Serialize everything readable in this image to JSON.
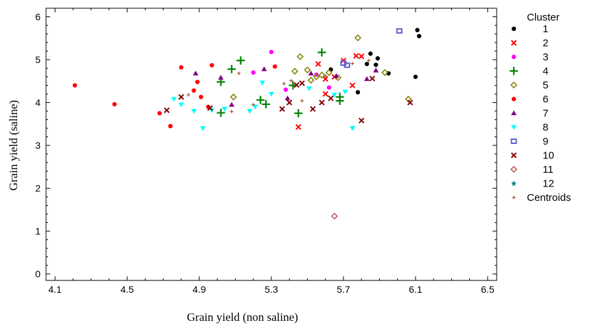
{
  "chart_data": {
    "type": "scatter",
    "title": "",
    "xlabel": "Grain yield (non saline)",
    "ylabel": "Grain yield (saline)",
    "xlim": [
      4.05,
      6.55
    ],
    "ylim": [
      -0.15,
      6.2
    ],
    "x_ticks": [
      "4.1",
      "4.5",
      "4.9",
      "5.3",
      "5.7",
      "6.1",
      "6.5"
    ],
    "y_ticks": [
      "0",
      "1",
      "2",
      "3",
      "4",
      "5",
      "6"
    ],
    "grid": false,
    "legend": {
      "title": "Cluster",
      "position": "right"
    },
    "series": [
      {
        "name": "1",
        "color": "#000000",
        "marker": "circle",
        "points": [
          [
            5.63,
            4.77
          ],
          [
            5.83,
            4.9
          ],
          [
            5.85,
            5.14
          ],
          [
            5.89,
            5.03
          ],
          [
            5.95,
            4.68
          ],
          [
            6.11,
            5.69
          ],
          [
            6.12,
            5.55
          ],
          [
            6.1,
            4.6
          ],
          [
            5.78,
            4.24
          ],
          [
            5.88,
            4.88
          ]
        ]
      },
      {
        "name": "2",
        "color": "#ff0000",
        "marker": "x",
        "points": [
          [
            5.45,
            3.43
          ],
          [
            5.56,
            4.9
          ],
          [
            5.6,
            4.55
          ],
          [
            5.65,
            4.6
          ],
          [
            5.7,
            4.98
          ],
          [
            5.77,
            5.09
          ],
          [
            5.8,
            5.08
          ],
          [
            5.75,
            4.4
          ],
          [
            5.6,
            4.2
          ]
        ]
      },
      {
        "name": "3",
        "color": "#ff00ff",
        "marker": "circle",
        "points": [
          [
            5.3,
            5.18
          ],
          [
            5.2,
            4.7
          ],
          [
            5.55,
            4.65
          ],
          [
            5.62,
            4.35
          ],
          [
            5.38,
            4.3
          ]
        ]
      },
      {
        "name": "4",
        "color": "#008000",
        "marker": "plus",
        "points": [
          [
            5.02,
            4.48
          ],
          [
            5.08,
            4.78
          ],
          [
            5.13,
            4.98
          ],
          [
            5.02,
            3.76
          ],
          [
            5.24,
            4.06
          ],
          [
            5.27,
            3.96
          ],
          [
            5.45,
            3.75
          ],
          [
            5.58,
            5.17
          ],
          [
            5.68,
            4.13
          ],
          [
            5.68,
            4.04
          ],
          [
            5.42,
            4.4
          ]
        ]
      },
      {
        "name": "5",
        "color": "#808000",
        "marker": "diamond",
        "points": [
          [
            5.09,
            4.13
          ],
          [
            5.43,
            4.73
          ],
          [
            5.46,
            5.07
          ],
          [
            5.52,
            4.52
          ],
          [
            5.55,
            4.6
          ],
          [
            5.58,
            4.64
          ],
          [
            5.62,
            4.7
          ],
          [
            5.67,
            4.58
          ],
          [
            5.78,
            5.51
          ],
          [
            5.93,
            4.7
          ],
          [
            6.06,
            4.08
          ],
          [
            5.5,
            4.76
          ]
        ]
      },
      {
        "name": "6",
        "color": "#ff0000",
        "marker": "circle",
        "points": [
          [
            4.21,
            4.4
          ],
          [
            4.43,
            3.96
          ],
          [
            4.74,
            3.45
          ],
          [
            4.8,
            4.82
          ],
          [
            4.89,
            4.48
          ],
          [
            4.91,
            4.13
          ],
          [
            4.95,
            3.9
          ],
          [
            4.97,
            4.87
          ],
          [
            4.87,
            4.28
          ],
          [
            4.68,
            3.75
          ],
          [
            5.32,
            4.84
          ]
        ]
      },
      {
        "name": "7",
        "color": "#800080",
        "marker": "triangle",
        "points": [
          [
            4.88,
            4.68
          ],
          [
            5.02,
            4.58
          ],
          [
            5.08,
            3.95
          ],
          [
            5.26,
            4.78
          ],
          [
            5.39,
            4.1
          ],
          [
            5.66,
            4.62
          ],
          [
            5.83,
            4.55
          ],
          [
            5.88,
            4.75
          ],
          [
            5.52,
            4.68
          ]
        ]
      },
      {
        "name": "8",
        "color": "#00ffff",
        "marker": "triangle-down",
        "points": [
          [
            4.76,
            4.08
          ],
          [
            4.8,
            3.95
          ],
          [
            4.87,
            3.8
          ],
          [
            4.92,
            3.4
          ],
          [
            4.97,
            3.82
          ],
          [
            5.04,
            3.85
          ],
          [
            5.18,
            3.8
          ],
          [
            5.21,
            3.9
          ],
          [
            5.25,
            4.46
          ],
          [
            5.3,
            4.2
          ],
          [
            5.51,
            4.33
          ],
          [
            5.65,
            4.18
          ],
          [
            5.71,
            4.25
          ],
          [
            5.75,
            3.4
          ]
        ]
      },
      {
        "name": "9",
        "color": "#6060d0",
        "marker": "square",
        "points": [
          [
            6.01,
            5.67
          ],
          [
            5.72,
            4.87
          ],
          [
            5.7,
            4.92
          ]
        ]
      },
      {
        "name": "10",
        "color": "#800000",
        "marker": "x",
        "points": [
          [
            4.72,
            3.82
          ],
          [
            4.8,
            4.13
          ],
          [
            4.96,
            3.87
          ],
          [
            5.36,
            3.85
          ],
          [
            5.4,
            4.0
          ],
          [
            5.44,
            4.41
          ],
          [
            5.53,
            3.85
          ],
          [
            5.58,
            4.0
          ],
          [
            5.8,
            3.58
          ],
          [
            5.86,
            4.56
          ],
          [
            6.07,
            4.0
          ],
          [
            5.47,
            4.45
          ],
          [
            5.63,
            4.1
          ]
        ]
      },
      {
        "name": "11",
        "color": "#c05050",
        "marker": "diamond",
        "points": [
          [
            5.65,
            1.35
          ]
        ]
      },
      {
        "name": "12",
        "color": "#008080",
        "marker": "star",
        "points": []
      },
      {
        "name": "Centroids",
        "color": "#a0522d",
        "marker": "small-plus",
        "points": [
          [
            4.84,
            4.18
          ],
          [
            5.08,
            3.79
          ],
          [
            5.2,
            3.95
          ],
          [
            5.37,
            4.44
          ],
          [
            5.47,
            4.04
          ],
          [
            5.41,
            4.51
          ],
          [
            5.6,
            4.62
          ],
          [
            5.75,
            4.91
          ],
          [
            5.84,
            4.98
          ],
          [
            5.12,
            4.68
          ]
        ]
      }
    ]
  }
}
